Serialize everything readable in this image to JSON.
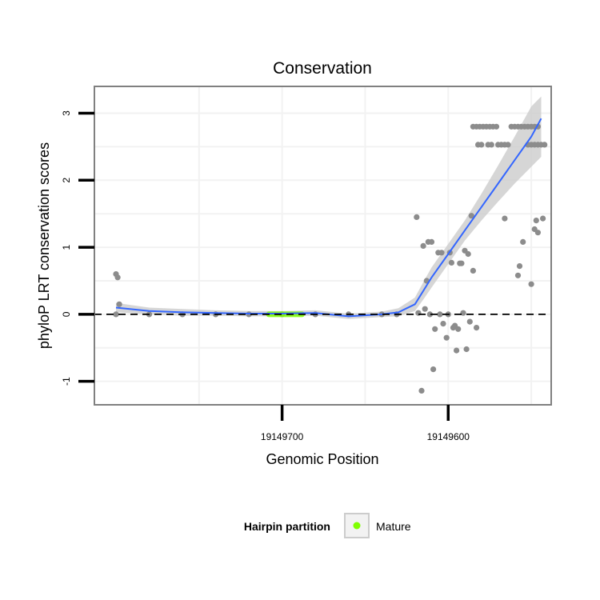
{
  "chart_data": {
    "type": "scatter",
    "title": "Conservation",
    "xlabel": "Genomic Position",
    "ylabel": "phyloP LRT conservation scores",
    "x_reversed": true,
    "xlim": [
      19149813,
      19149538
    ],
    "ylim": [
      -1.35,
      3.4
    ],
    "x_ticks": [
      19149700,
      19149600
    ],
    "x_tick_labels": [
      "19149700",
      "19149600"
    ],
    "y_ticks": [
      -1,
      0,
      1,
      2,
      3
    ],
    "y_tick_labels": [
      "-1",
      "0",
      "1",
      "2",
      "3"
    ],
    "reference_line": {
      "y": 0,
      "style": "dashed"
    },
    "grid": true,
    "legend": {
      "title": "Hairpin partition",
      "position": "bottom",
      "entries": [
        {
          "label": "Mature",
          "color": "#7FFF00"
        }
      ]
    },
    "colors": {
      "points": "#8c8c8c",
      "smooth": "#3366FF",
      "ribbon": "#cccccc",
      "mature": "#7FFF00",
      "panel_border": "#808080",
      "grid": "#f2f2f2"
    },
    "mature_range": [
      19149708,
      19149688
    ],
    "smooth_fit": {
      "x": [
        19149800,
        19149780,
        19149760,
        19149740,
        19149720,
        19149700,
        19149680,
        19149660,
        19149640,
        19149630,
        19149620,
        19149615,
        19149610,
        19149600,
        19149590,
        19149580,
        19149570,
        19149560,
        19149550,
        19149544
      ],
      "y": [
        0.1,
        0.05,
        0.03,
        0.02,
        0.01,
        0.01,
        0.02,
        -0.03,
        0.0,
        0.03,
        0.15,
        0.35,
        0.55,
        0.9,
        1.25,
        1.6,
        1.95,
        2.3,
        2.65,
        2.92
      ],
      "lower": [
        0.03,
        0.0,
        -0.02,
        -0.02,
        -0.03,
        -0.03,
        -0.02,
        -0.07,
        -0.04,
        -0.03,
        0.05,
        0.22,
        0.4,
        0.75,
        1.1,
        1.4,
        1.68,
        1.95,
        2.2,
        2.35
      ],
      "upper": [
        0.17,
        0.1,
        0.08,
        0.06,
        0.05,
        0.05,
        0.06,
        0.01,
        0.04,
        0.09,
        0.25,
        0.48,
        0.7,
        1.05,
        1.4,
        1.8,
        2.22,
        2.65,
        3.1,
        3.25
      ]
    },
    "points": [
      {
        "x": 19149800,
        "y": 0.6
      },
      {
        "x": 19149799,
        "y": 0.55
      },
      {
        "x": 19149798,
        "y": 0.15
      },
      {
        "x": 19149800,
        "y": 0.0
      },
      {
        "x": 19149780,
        "y": 0.0
      },
      {
        "x": 19149760,
        "y": 0.0
      },
      {
        "x": 19149740,
        "y": 0.0
      },
      {
        "x": 19149720,
        "y": 0.0
      },
      {
        "x": 19149700,
        "y": 0.0
      },
      {
        "x": 19149680,
        "y": 0.0
      },
      {
        "x": 19149660,
        "y": 0.0
      },
      {
        "x": 19149640,
        "y": 0.0
      },
      {
        "x": 19149631,
        "y": 0.0
      },
      {
        "x": 19149619,
        "y": 1.45
      },
      {
        "x": 19149618,
        "y": 0.02
      },
      {
        "x": 19149616,
        "y": -1.14
      },
      {
        "x": 19149615,
        "y": 1.02
      },
      {
        "x": 19149614,
        "y": 0.08
      },
      {
        "x": 19149613,
        "y": 0.5
      },
      {
        "x": 19149612,
        "y": 1.08
      },
      {
        "x": 19149611,
        "y": 0.0
      },
      {
        "x": 19149610,
        "y": 1.08
      },
      {
        "x": 19149609,
        "y": -0.82
      },
      {
        "x": 19149608,
        "y": -0.22
      },
      {
        "x": 19149606,
        "y": 0.92
      },
      {
        "x": 19149605,
        "y": 0.0
      },
      {
        "x": 19149604,
        "y": 0.92
      },
      {
        "x": 19149603,
        "y": -0.14
      },
      {
        "x": 19149601,
        "y": -0.35
      },
      {
        "x": 19149600,
        "y": 0.0
      },
      {
        "x": 19149599,
        "y": 0.92
      },
      {
        "x": 19149598,
        "y": 0.77
      },
      {
        "x": 19149597,
        "y": -0.2
      },
      {
        "x": 19149596,
        "y": -0.17
      },
      {
        "x": 19149595,
        "y": -0.54
      },
      {
        "x": 19149594,
        "y": -0.22
      },
      {
        "x": 19149593,
        "y": 0.76
      },
      {
        "x": 19149592,
        "y": 0.76
      },
      {
        "x": 19149591,
        "y": 0.02
      },
      {
        "x": 19149590,
        "y": 0.95
      },
      {
        "x": 19149589,
        "y": -0.52
      },
      {
        "x": 19149588,
        "y": 0.9
      },
      {
        "x": 19149587,
        "y": -0.11
      },
      {
        "x": 19149586,
        "y": 1.47
      },
      {
        "x": 19149585,
        "y": 0.65
      },
      {
        "x": 19149583,
        "y": -0.2
      },
      {
        "x": 19149585,
        "y": 2.8
      },
      {
        "x": 19149583,
        "y": 2.8
      },
      {
        "x": 19149581,
        "y": 2.8
      },
      {
        "x": 19149579,
        "y": 2.8
      },
      {
        "x": 19149577,
        "y": 2.8
      },
      {
        "x": 19149575,
        "y": 2.8
      },
      {
        "x": 19149573,
        "y": 2.8
      },
      {
        "x": 19149571,
        "y": 2.8
      },
      {
        "x": 19149582,
        "y": 2.53
      },
      {
        "x": 19149580,
        "y": 2.53
      },
      {
        "x": 19149576,
        "y": 2.53
      },
      {
        "x": 19149574,
        "y": 2.53
      },
      {
        "x": 19149570,
        "y": 2.53
      },
      {
        "x": 19149568,
        "y": 2.53
      },
      {
        "x": 19149566,
        "y": 2.53
      },
      {
        "x": 19149564,
        "y": 2.53
      },
      {
        "x": 19149566,
        "y": 1.43
      },
      {
        "x": 19149562,
        "y": 2.8
      },
      {
        "x": 19149560,
        "y": 2.8
      },
      {
        "x": 19149558,
        "y": 2.8
      },
      {
        "x": 19149556,
        "y": 2.8
      },
      {
        "x": 19149554,
        "y": 2.8
      },
      {
        "x": 19149552,
        "y": 2.8
      },
      {
        "x": 19149550,
        "y": 2.8
      },
      {
        "x": 19149548,
        "y": 2.8
      },
      {
        "x": 19149546,
        "y": 2.8
      },
      {
        "x": 19149558,
        "y": 0.58
      },
      {
        "x": 19149557,
        "y": 0.72
      },
      {
        "x": 19149555,
        "y": 1.08
      },
      {
        "x": 19149552,
        "y": 2.53
      },
      {
        "x": 19149550,
        "y": 2.53
      },
      {
        "x": 19149548,
        "y": 2.53
      },
      {
        "x": 19149546,
        "y": 2.53
      },
      {
        "x": 19149544,
        "y": 2.53
      },
      {
        "x": 19149550,
        "y": 0.45
      },
      {
        "x": 19149548,
        "y": 1.27
      },
      {
        "x": 19149547,
        "y": 1.4
      },
      {
        "x": 19149546,
        "y": 1.22
      },
      {
        "x": 19149543,
        "y": 1.43
      },
      {
        "x": 19149542,
        "y": 2.53
      }
    ]
  }
}
